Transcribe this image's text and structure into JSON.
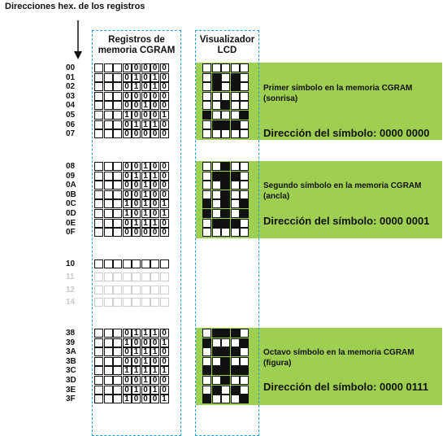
{
  "title": "Direcciones hex. de los registros",
  "headers": {
    "cgram": [
      "Registros de",
      "memoria CGRAM"
    ],
    "lcd": [
      "Visualizador",
      "LCD"
    ]
  },
  "symbols": [
    {
      "description": [
        "Primer símbolo en la memoria CGRAM",
        "(sonrisa)"
      ],
      "address_label": "Dirección del símbolo: 0000 0000",
      "rows": [
        {
          "addr": "00",
          "bits": "00000"
        },
        {
          "addr": "01",
          "bits": "01010"
        },
        {
          "addr": "02",
          "bits": "01010"
        },
        {
          "addr": "03",
          "bits": "00000"
        },
        {
          "addr": "04",
          "bits": "00100"
        },
        {
          "addr": "05",
          "bits": "10001"
        },
        {
          "addr": "06",
          "bits": "01110"
        },
        {
          "addr": "07",
          "bits": "00000"
        }
      ]
    },
    {
      "description": [
        "Segundo símbolo en la memoria CGRAM",
        "(ancla)"
      ],
      "address_label": "Dirección del símbolo: 0000 0001",
      "rows": [
        {
          "addr": "08",
          "bits": "00100"
        },
        {
          "addr": "09",
          "bits": "01110"
        },
        {
          "addr": "0A",
          "bits": "00100"
        },
        {
          "addr": "0B",
          "bits": "00100"
        },
        {
          "addr": "0C",
          "bits": "10101"
        },
        {
          "addr": "0D",
          "bits": "10101"
        },
        {
          "addr": "0E",
          "bits": "01110"
        },
        {
          "addr": "0F",
          "bits": "00000"
        }
      ]
    },
    {
      "description": [
        "Octavo símbolo en la memoria CGRAM",
        "(figura)"
      ],
      "address_label": "Dirección del símbolo: 0000 0111",
      "rows": [
        {
          "addr": "38",
          "bits": "01110"
        },
        {
          "addr": "39",
          "bits": "10001"
        },
        {
          "addr": "3A",
          "bits": "01110"
        },
        {
          "addr": "3B",
          "bits": "00100"
        },
        {
          "addr": "3C",
          "bits": "11111"
        },
        {
          "addr": "3D",
          "bits": "00100"
        },
        {
          "addr": "3E",
          "bits": "01010"
        },
        {
          "addr": "3F",
          "bits": "10001"
        }
      ]
    }
  ],
  "empty_rows": [
    "10",
    "11",
    "12",
    "14"
  ]
}
